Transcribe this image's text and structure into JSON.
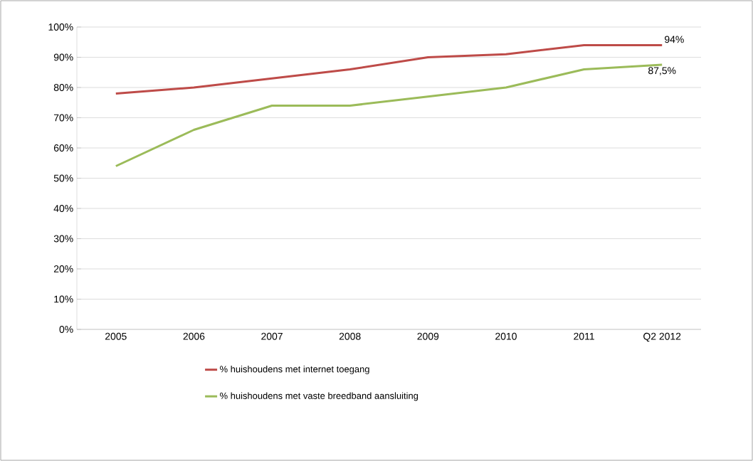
{
  "chart_data": {
    "type": "line",
    "categories": [
      "2005",
      "2006",
      "2007",
      "2008",
      "2009",
      "2010",
      "2011",
      "Q2 2012"
    ],
    "series": [
      {
        "name": "% huishoudens met internet toegang",
        "color": "#be4b48",
        "values": [
          78,
          80,
          83,
          86,
          90,
          91,
          94,
          94
        ],
        "value_labels": [
          null,
          null,
          null,
          null,
          null,
          null,
          null,
          "94%"
        ]
      },
      {
        "name": "% huishoudens met vaste breedband aansluiting",
        "color": "#9bbb59",
        "values": [
          54,
          66,
          74,
          74,
          77,
          80,
          86,
          87.5
        ],
        "value_labels": [
          null,
          null,
          null,
          null,
          null,
          null,
          null,
          "87,5%"
        ]
      }
    ],
    "ylim": [
      0,
      100
    ],
    "yticks": [
      {
        "value": 0,
        "label": "0%"
      },
      {
        "value": 10,
        "label": "10%"
      },
      {
        "value": 20,
        "label": "20%"
      },
      {
        "value": 30,
        "label": "30%"
      },
      {
        "value": 40,
        "label": "40%"
      },
      {
        "value": 50,
        "label": "50%"
      },
      {
        "value": 60,
        "label": "60%"
      },
      {
        "value": 70,
        "label": "70%"
      },
      {
        "value": 80,
        "label": "80%"
      },
      {
        "value": 90,
        "label": "90%"
      },
      {
        "value": 100,
        "label": "100%"
      }
    ],
    "grid": "y",
    "legend": "bottom",
    "marker": "none",
    "line_style": "solid"
  }
}
